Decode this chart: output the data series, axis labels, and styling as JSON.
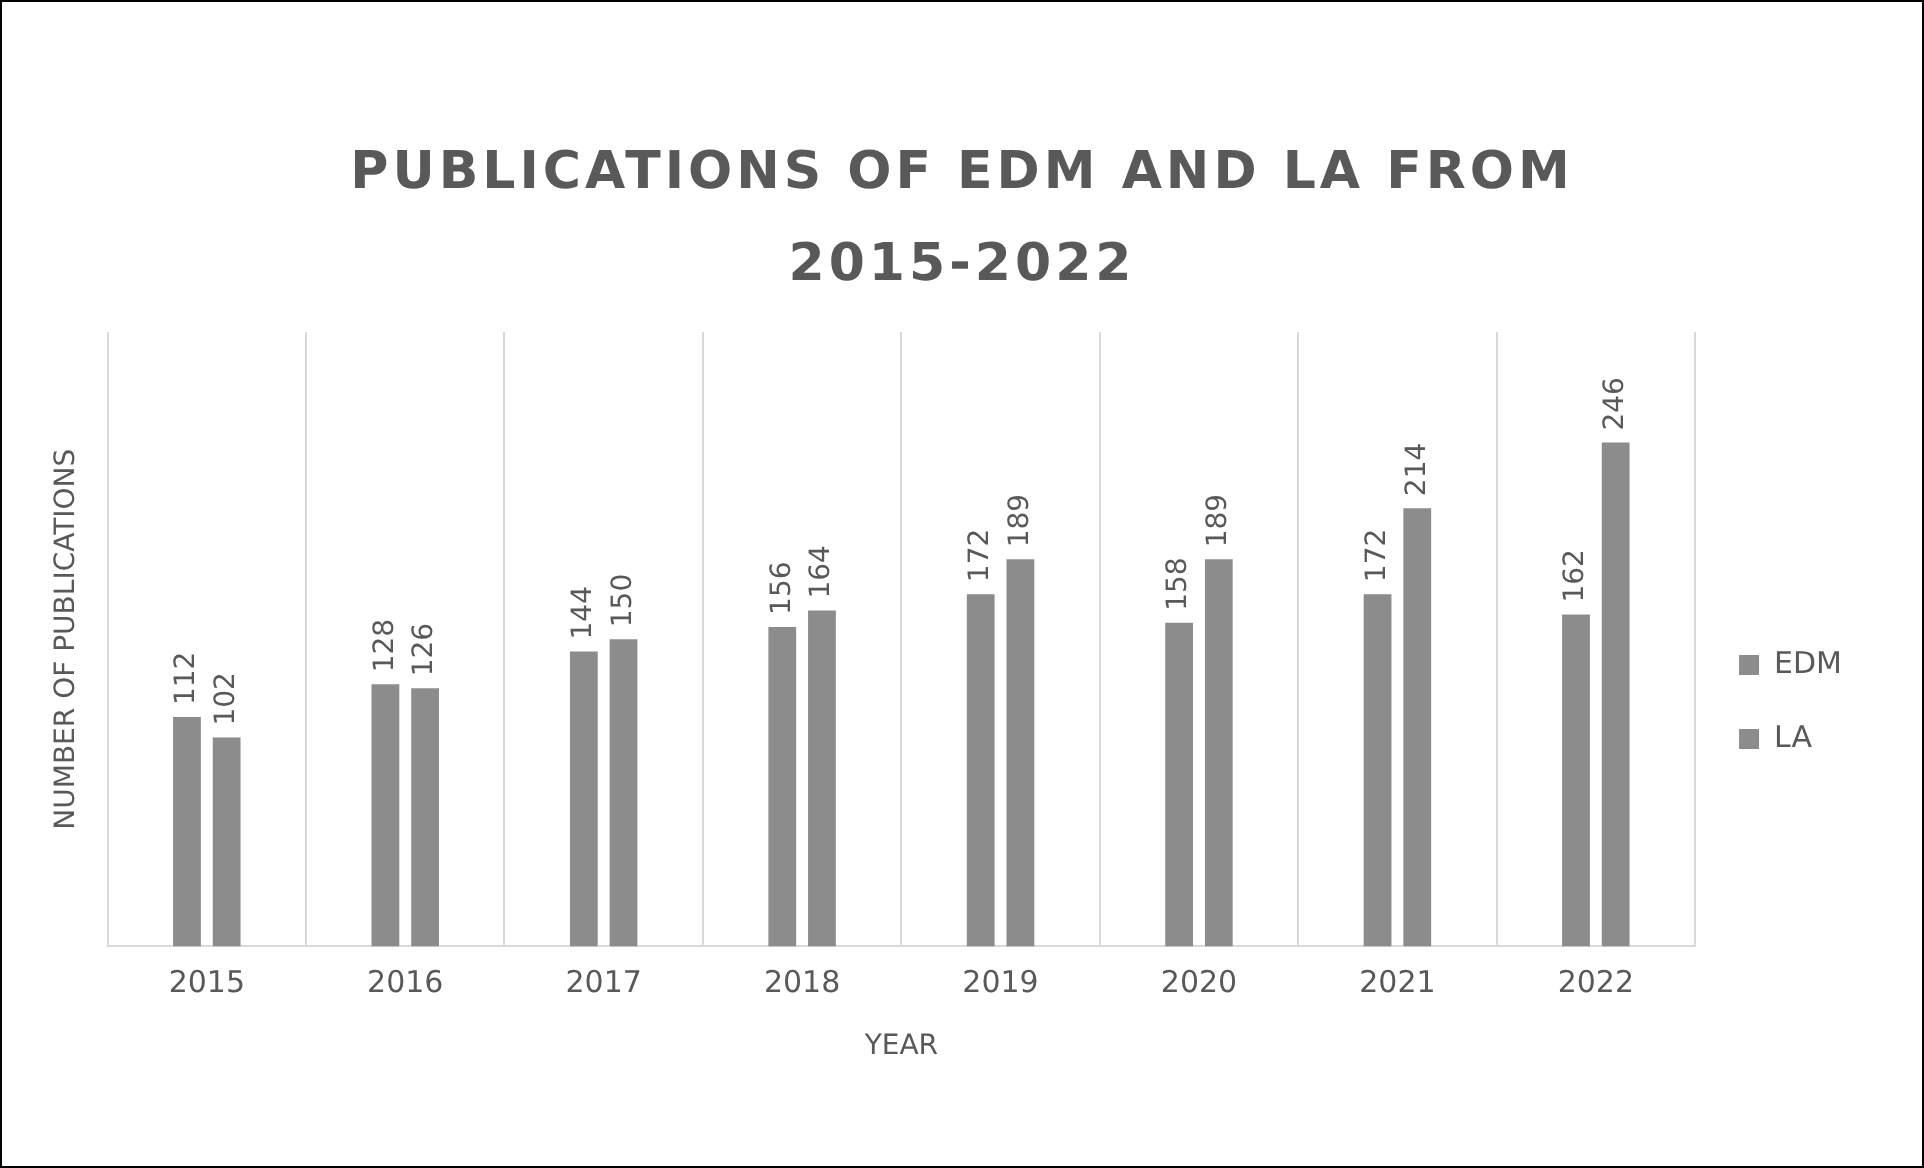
{
  "chart_data": {
    "type": "bar",
    "title": "PUBLICATIONS OF EDM AND LA FROM 2015-2022",
    "xlabel": "YEAR",
    "ylabel": "NUMBER OF PUBLICATIONS",
    "categories": [
      "2015",
      "2016",
      "2017",
      "2018",
      "2019",
      "2020",
      "2021",
      "2022"
    ],
    "series": [
      {
        "name": "EDM",
        "color": "#8c8c8c",
        "values": [
          112,
          128,
          144,
          156,
          172,
          158,
          172,
          162
        ]
      },
      {
        "name": "LA",
        "color": "#8c8c8c",
        "values": [
          102,
          126,
          150,
          164,
          189,
          189,
          214,
          246
        ]
      }
    ],
    "data_labels": true,
    "grid": "x",
    "legend": "right"
  }
}
